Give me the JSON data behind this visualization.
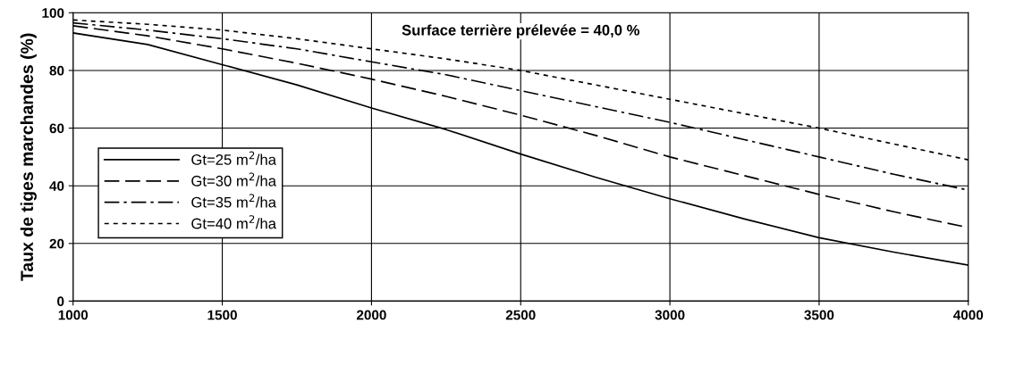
{
  "chart_data": {
    "type": "line",
    "ylabel": "Taux de tiges marchandes (%)",
    "annotations": [
      "Surface terrière prélevée = 40,0 %"
    ],
    "x": [
      1000,
      1250,
      1500,
      1750,
      2000,
      2250,
      2500,
      2750,
      3000,
      3250,
      3500,
      3750,
      4000
    ],
    "series": [
      {
        "name": "Gt=25 m$^{2}$/ha",
        "color": "#000000",
        "line_style": "solid",
        "values": [
          93,
          89,
          82,
          75,
          67,
          59.5,
          51,
          43,
          35.5,
          28.5,
          22,
          17,
          12.5
        ]
      },
      {
        "name": "Gt=30 m$^{2}$/ha",
        "color": "#000000",
        "line_style": "dashed",
        "values": [
          95.5,
          92,
          87.5,
          82.5,
          77,
          71,
          64.5,
          57.5,
          50,
          43.5,
          37,
          31,
          25.5
        ]
      },
      {
        "name": "Gt=35 m$^{2}$/ha",
        "color": "#000000",
        "line_style": "dashdot",
        "values": [
          96.5,
          94,
          91,
          87.5,
          83,
          78.5,
          73,
          67.5,
          62,
          56,
          50,
          44,
          38.5
        ]
      },
      {
        "name": "Gt=40 m$^{2}$/ha",
        "color": "#000000",
        "line_style": "dotted",
        "values": [
          97.5,
          96,
          94,
          91,
          87.5,
          84,
          80,
          75,
          70,
          65,
          60,
          54.5,
          49
        ]
      }
    ],
    "xlim": [
      1000,
      4000
    ],
    "xticks": [
      1000,
      1500,
      2000,
      2500,
      3000,
      3500,
      4000
    ],
    "ylim": [
      0,
      100
    ],
    "yticks": [
      0,
      20,
      40,
      60,
      80,
      100
    ],
    "grid": true,
    "legend": "left",
    "marker": "none"
  }
}
